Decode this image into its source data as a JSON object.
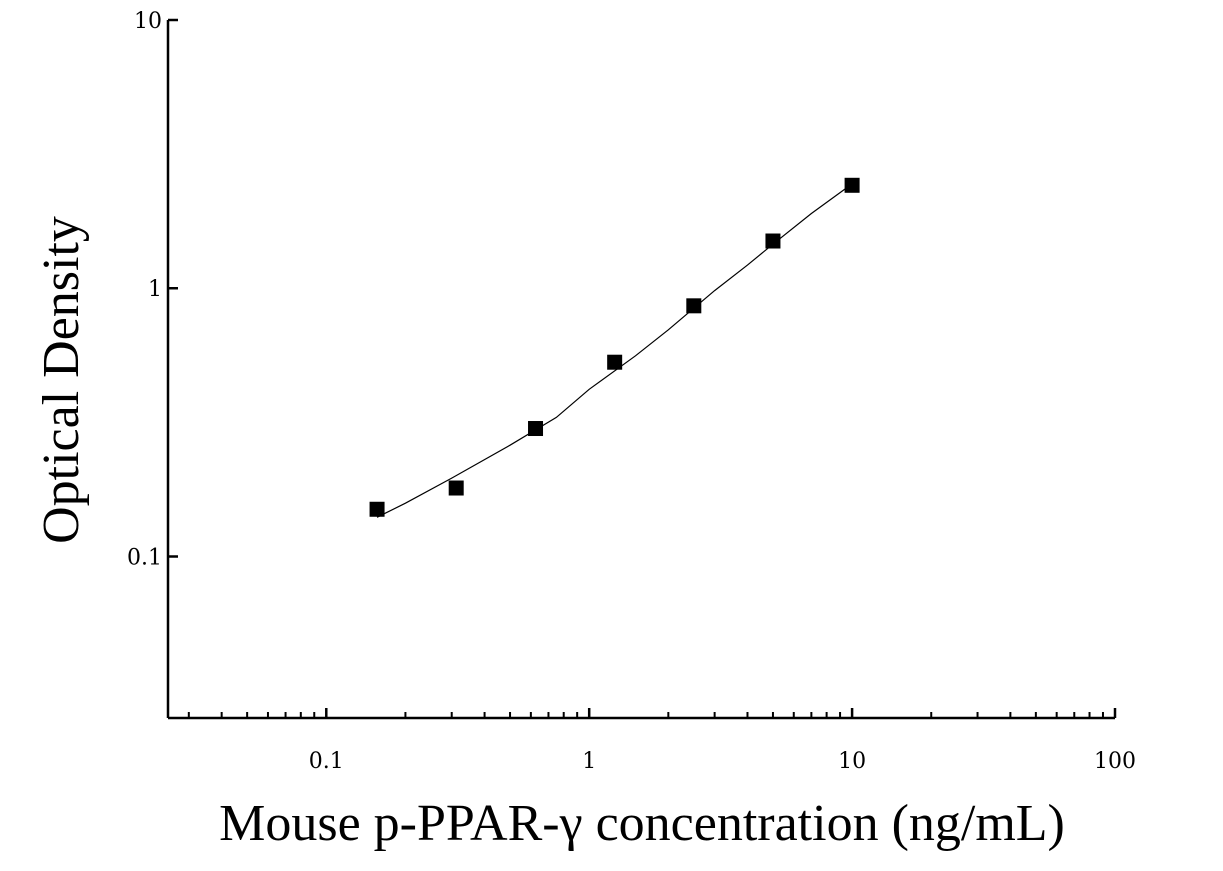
{
  "chart_data": {
    "type": "scatter",
    "xlabel": "Mouse p-PPAR-γ concentration (ng/mL)",
    "ylabel": "Optical Density",
    "x_scale": "log",
    "y_scale": "log",
    "xlim": [
      0.025,
      100
    ],
    "ylim": [
      0.025,
      10
    ],
    "x_ticks": [
      {
        "value": 0.1,
        "label": "0.1"
      },
      {
        "value": 1,
        "label": "1"
      },
      {
        "value": 10,
        "label": "10"
      },
      {
        "value": 100,
        "label": "100"
      }
    ],
    "y_ticks": [
      {
        "value": 0.1,
        "label": "0.1"
      },
      {
        "value": 1,
        "label": "1"
      },
      {
        "value": 10,
        "label": "10"
      }
    ],
    "points": [
      {
        "x": 0.156,
        "y": 0.15
      },
      {
        "x": 0.312,
        "y": 0.18
      },
      {
        "x": 0.625,
        "y": 0.3
      },
      {
        "x": 1.25,
        "y": 0.53
      },
      {
        "x": 2.5,
        "y": 0.86
      },
      {
        "x": 5,
        "y": 1.5
      },
      {
        "x": 10,
        "y": 2.42
      }
    ],
    "fit_curve": {
      "x": [
        0.156,
        0.2,
        0.3,
        0.5,
        0.75,
        1,
        1.5,
        2,
        3,
        4,
        5,
        7,
        10
      ],
      "y": [
        0.14,
        0.158,
        0.196,
        0.26,
        0.33,
        0.42,
        0.56,
        0.7,
        0.98,
        1.22,
        1.46,
        1.9,
        2.45
      ]
    },
    "grid": false,
    "legend": "none"
  }
}
